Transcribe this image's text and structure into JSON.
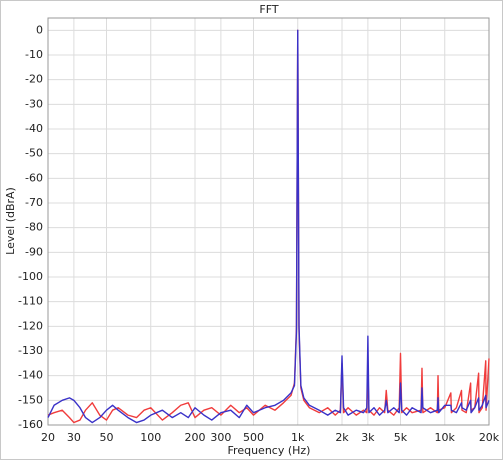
{
  "chart_data": {
    "type": "line",
    "title": "FFT",
    "x_label": "Frequency (Hz)",
    "y_label": "Level (dBrA)",
    "x_scale": "log",
    "grid": true,
    "xlim": [
      20,
      20000
    ],
    "ylim": [
      -160,
      5
    ],
    "xticks": [
      20,
      30,
      50,
      100,
      200,
      300,
      500,
      {
        "value": 1000,
        "label": "1k"
      },
      {
        "value": 2000,
        "label": "2k"
      },
      {
        "value": 3000,
        "label": "3k"
      },
      {
        "value": 5000,
        "label": "5k"
      },
      {
        "value": 10000,
        "label": "10k"
      },
      {
        "value": 20000,
        "label": "20k"
      }
    ],
    "yticks": [
      0,
      -10,
      -20,
      -30,
      -40,
      -50,
      -60,
      -70,
      -80,
      -90,
      -100,
      -110,
      -120,
      -130,
      -140,
      -150,
      -160
    ],
    "x": [
      20,
      22,
      25,
      28,
      30,
      33,
      36,
      40,
      45,
      50,
      55,
      60,
      70,
      80,
      90,
      100,
      120,
      140,
      160,
      180,
      200,
      230,
      260,
      300,
      350,
      400,
      450,
      500,
      600,
      700,
      800,
      900,
      950,
      980,
      1000,
      1020,
      1050,
      1100,
      1200,
      1400,
      1600,
      1800,
      1950,
      2000,
      2050,
      2200,
      2500,
      2800,
      2950,
      3000,
      3050,
      3300,
      3600,
      3900,
      4000,
      4100,
      4500,
      4900,
      5000,
      5100,
      5500,
      6000,
      6900,
      7000,
      7100,
      8000,
      8900,
      9000,
      9100,
      10000,
      11000,
      11100,
      12000,
      13000,
      13100,
      14000,
      15000,
      15100,
      16000,
      17000,
      17100,
      18000,
      19000,
      19100,
      20000
    ],
    "series": [
      {
        "color": "#f03c3c",
        "values": [
          -156,
          -155,
          -154,
          -157,
          -159,
          -158,
          -154,
          -151,
          -156,
          -158,
          -154,
          -153,
          -156,
          -157,
          -154,
          -153,
          -158,
          -155,
          -152,
          -151,
          -157,
          -154,
          -153,
          -156,
          -152,
          -155,
          -153,
          -156,
          -152,
          -154,
          -151,
          -148,
          -143,
          -120,
          0,
          -122,
          -145,
          -150,
          -153,
          -155,
          -153,
          -156,
          -154,
          -135,
          -155,
          -153,
          -156,
          -154,
          -155,
          -138,
          -154,
          -156,
          -153,
          -155,
          -146,
          -154,
          -156,
          -153,
          -131,
          -155,
          -153,
          -155,
          -154,
          -137,
          -155,
          -153,
          -155,
          -140,
          -154,
          -153,
          -147,
          -155,
          -153,
          -146,
          -154,
          -155,
          -143,
          -154,
          -153,
          -139,
          -155,
          -153,
          -134,
          -154,
          -133
        ]
      },
      {
        "color": "#3a32c8",
        "values": [
          -157,
          -152,
          -150,
          -149,
          -150,
          -153,
          -157,
          -159,
          -157,
          -154,
          -152,
          -154,
          -157,
          -159,
          -158,
          -156,
          -154,
          -157,
          -155,
          -157,
          -153,
          -156,
          -158,
          -155,
          -154,
          -157,
          -152,
          -155,
          -153,
          -152,
          -150,
          -147,
          -144,
          -122,
          0,
          -120,
          -144,
          -149,
          -152,
          -154,
          -156,
          -154,
          -155,
          -132,
          -153,
          -156,
          -154,
          -155,
          -153,
          -124,
          -155,
          -153,
          -156,
          -154,
          -150,
          -155,
          -153,
          -155,
          -143,
          -154,
          -156,
          -153,
          -155,
          -145,
          -153,
          -155,
          -154,
          -149,
          -155,
          -152,
          -152,
          -154,
          -155,
          -151,
          -153,
          -154,
          -150,
          -155,
          -153,
          -149,
          -154,
          -152,
          -148,
          -153,
          -150
        ]
      }
    ]
  }
}
